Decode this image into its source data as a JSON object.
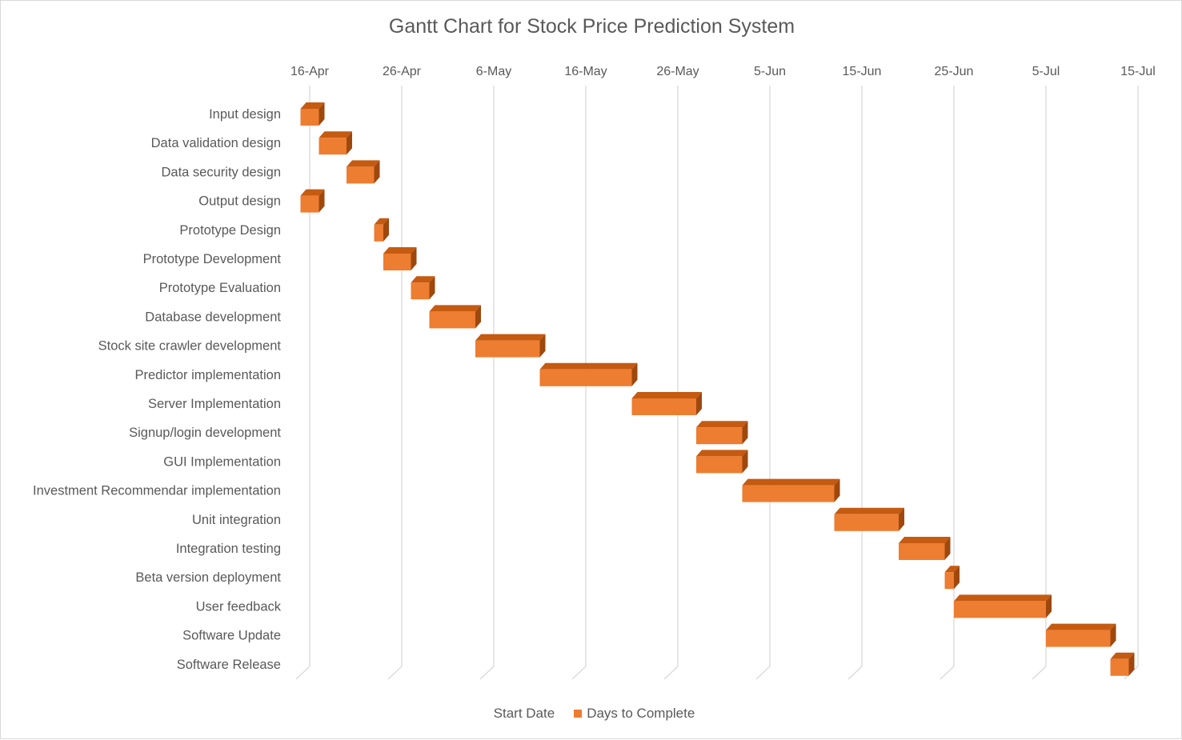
{
  "chart_data": {
    "type": "bar",
    "orientation": "horizontal",
    "style": "3d-gantt",
    "title": "Gantt Chart for Stock Price Prediction System",
    "x_axis": {
      "position": "top",
      "tick_labels": [
        "16-Apr",
        "26-Apr",
        "6-May",
        "16-May",
        "26-May",
        "5-Jun",
        "15-Jun",
        "25-Jun",
        "5-Jul",
        "15-Jul"
      ],
      "ticks": [
        "2024-04-16",
        "2024-04-26",
        "2024-05-06",
        "2024-05-16",
        "2024-05-26",
        "2024-06-05",
        "2024-06-15",
        "2024-06-25",
        "2024-07-05",
        "2024-07-15"
      ],
      "range": [
        "2024-04-16",
        "2024-07-15"
      ]
    },
    "grid": true,
    "legend_position": "bottom",
    "categories": [
      "Input design",
      "Data validation design",
      "Data security design",
      "Output design",
      "Prototype Design",
      "Prototype Development",
      "Prototype Evaluation",
      "Database development",
      "Stock site crawler development",
      "Predictor implementation",
      "Server Implementation",
      "Signup/login development",
      "GUI Implementation",
      "Investment Recommendar implementation",
      "Unit integration",
      "Integration testing",
      "Beta version deployment",
      "User feedback",
      "Software Update",
      "Software Release"
    ],
    "series": [
      {
        "name": "Start Date",
        "visible": false,
        "color": "none",
        "values": [
          "2024-04-15",
          "2024-04-17",
          "2024-04-20",
          "2024-04-15",
          "2024-04-23",
          "2024-04-24",
          "2024-04-27",
          "2024-04-29",
          "2024-05-04",
          "2024-05-11",
          "2024-05-21",
          "2024-05-28",
          "2024-05-28",
          "2024-06-02",
          "2024-06-12",
          "2024-06-19",
          "2024-06-24",
          "2024-06-25",
          "2024-07-05",
          "2024-07-12"
        ]
      },
      {
        "name": "Days to Complete",
        "visible": true,
        "color": "#ED7D31",
        "values": [
          2,
          3,
          3,
          2,
          1,
          3,
          2,
          5,
          7,
          10,
          7,
          5,
          5,
          10,
          7,
          5,
          1,
          10,
          7,
          2
        ]
      }
    ],
    "colors": {
      "bar_front": "#ED7D31",
      "bar_top": "#C55A11",
      "bar_side": "#9E480E",
      "grid": "#d9d9d9",
      "text": "#595959"
    }
  }
}
